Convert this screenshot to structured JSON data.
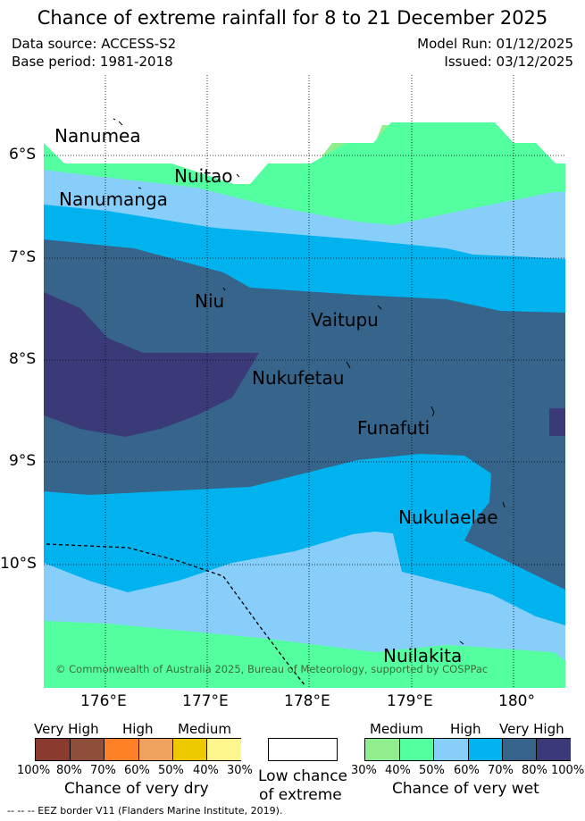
{
  "title": "Chance of extreme rainfall for 8 to 21 December 2025",
  "meta": {
    "data_source": "Data source: ACCESS-S2",
    "base_period": "Base period: 1981-2018",
    "model_run": "Model Run: 01/12/2025",
    "issued": "Issued: 03/12/2025"
  },
  "map": {
    "copyright": "© Commonwealth of Australia 2025, Bureau of Meteorology, supported by COSPPac",
    "lat_ticks": [
      "6°S",
      "7°S",
      "8°S",
      "9°S",
      "10°S"
    ],
    "lon_ticks": [
      "176°E",
      "177°E",
      "178°E",
      "179°E",
      "180°"
    ],
    "islands": {
      "nanumea": "Nanumea",
      "nuitao": "Nuitao",
      "nanumanga": "Nanumanga",
      "niu": "Niu",
      "vaitupu": "Vaitupu",
      "nukufetau": "Nukufetau",
      "funafuti": "Funafuti",
      "nukulaelae": "Nukulaelae",
      "nuilakita": "Nuilakita"
    }
  },
  "legend": {
    "dry": {
      "categories": [
        "Very High",
        "High",
        "Medium"
      ],
      "percentages": [
        "100%",
        "80%",
        "70%",
        "60%",
        "50%",
        "40%",
        "30%"
      ],
      "colors": [
        "#8b3a30",
        "#8f4e3c",
        "#ff8126",
        "#eea25e",
        "#eec900",
        "#fff68f"
      ],
      "title": "Chance of very dry"
    },
    "low": {
      "title_line1": "Low chance",
      "title_line2": "of extreme",
      "color": "#ffffff"
    },
    "wet": {
      "categories": [
        "Medium",
        "High",
        "Very High"
      ],
      "percentages": [
        "30%",
        "40%",
        "50%",
        "60%",
        "70%",
        "80%",
        "100%"
      ],
      "colors": [
        "#90ee90",
        "#54ff9f",
        "#87cefa",
        "#00b2ee",
        "#36648b",
        "#3b3a78"
      ],
      "title": "Chance of very wet"
    }
  },
  "footer": "--  --  -- EEZ border V11 (Flanders Marine Institute, 2019)."
}
